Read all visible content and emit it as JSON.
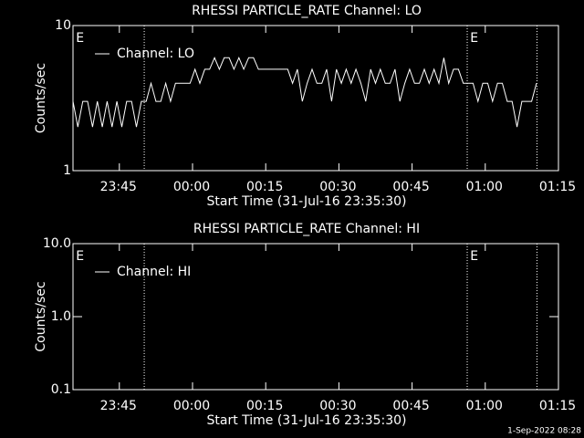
{
  "chart_data": [
    {
      "type": "line",
      "title": "RHESSI PARTICLE_RATE Channel: LO",
      "xlabel": "Start Time (31-Jul-16 23:35:30)",
      "ylabel": "Counts/sec",
      "xlim": [
        0,
        99.5
      ],
      "xticks": [
        {
          "value": 9.5,
          "label": "23:45"
        },
        {
          "value": 24.5,
          "label": "00:00"
        },
        {
          "value": 39.5,
          "label": "00:15"
        },
        {
          "value": 54.5,
          "label": "00:30"
        },
        {
          "value": 69.5,
          "label": "00:45"
        },
        {
          "value": 84.5,
          "label": "01:00"
        },
        {
          "value": 99.5,
          "label": "01:15"
        }
      ],
      "ylim": [
        1,
        10
      ],
      "yticks": [
        1,
        10
      ],
      "ylog": true,
      "legend": "upper left",
      "vlines": [
        14.6,
        80.8,
        95.1
      ],
      "annotations": [
        {
          "text": "E",
          "x": 0.6
        },
        {
          "text": "E",
          "x": 81.4
        }
      ],
      "series": [
        {
          "name": "Channel: LO",
          "color": "#ffffff",
          "x": [
            0,
            1,
            2,
            3,
            4,
            5,
            6,
            7,
            8,
            9,
            10,
            11,
            12,
            13,
            14,
            15,
            16,
            17,
            18,
            19,
            20,
            21,
            22,
            23,
            24,
            25,
            26,
            27,
            28,
            29,
            30,
            31,
            32,
            33,
            34,
            35,
            36,
            37,
            38,
            39,
            40,
            41,
            42,
            43,
            44,
            45,
            46,
            47,
            48,
            49,
            50,
            51,
            52,
            53,
            54,
            55,
            56,
            57,
            58,
            59,
            60,
            61,
            62,
            63,
            64,
            65,
            66,
            67,
            68,
            69,
            70,
            71,
            72,
            73,
            74,
            75,
            76,
            77,
            78,
            79,
            80,
            81,
            82,
            83,
            84,
            85,
            86,
            87,
            88,
            89,
            90,
            91,
            92,
            93,
            94,
            95
          ],
          "values": [
            3,
            2,
            3,
            3,
            2,
            3,
            2,
            3,
            2,
            3,
            2,
            3,
            3,
            2,
            3,
            3,
            4,
            3,
            3,
            4,
            3,
            4,
            4,
            4,
            4,
            5,
            4,
            5,
            5,
            6,
            5,
            6,
            6,
            5,
            6,
            5,
            6,
            6,
            5,
            5,
            5,
            5,
            5,
            5,
            5,
            4,
            5,
            3,
            4,
            5,
            4,
            4,
            5,
            3,
            5,
            4,
            5,
            4,
            5,
            4,
            3,
            5,
            4,
            5,
            4,
            4,
            5,
            3,
            4,
            5,
            4,
            4,
            5,
            4,
            5,
            4,
            6,
            4,
            5,
            5,
            4,
            4,
            4,
            3,
            4,
            4,
            3,
            4,
            4,
            3,
            3,
            2,
            3,
            3,
            3,
            4
          ]
        }
      ]
    },
    {
      "type": "line",
      "title": "RHESSI PARTICLE_RATE Channel: HI",
      "xlabel": "Start Time (31-Jul-16 23:35:30)",
      "ylabel": "Counts/sec",
      "xlim": [
        0,
        99.5
      ],
      "xticks": [
        {
          "value": 9.5,
          "label": "23:45"
        },
        {
          "value": 24.5,
          "label": "00:00"
        },
        {
          "value": 39.5,
          "label": "00:15"
        },
        {
          "value": 54.5,
          "label": "00:30"
        },
        {
          "value": 69.5,
          "label": "00:45"
        },
        {
          "value": 84.5,
          "label": "01:00"
        },
        {
          "value": 99.5,
          "label": "01:15"
        }
      ],
      "ylim": [
        0.1,
        10
      ],
      "yticks": [
        0.1,
        {
          "value": 1,
          "label": "1.0"
        },
        {
          "value": 10,
          "label": "10.0"
        }
      ],
      "ylog": true,
      "legend": "upper left",
      "vlines": [
        14.6,
        80.8,
        95.1
      ],
      "annotations": [
        {
          "text": "E",
          "x": 0.6
        },
        {
          "text": "E",
          "x": 81.4
        }
      ],
      "series": [
        {
          "name": "Channel: HI",
          "color": "#ffffff",
          "x": [],
          "values": []
        }
      ]
    }
  ],
  "footer": "1-Sep-2022 08:28"
}
